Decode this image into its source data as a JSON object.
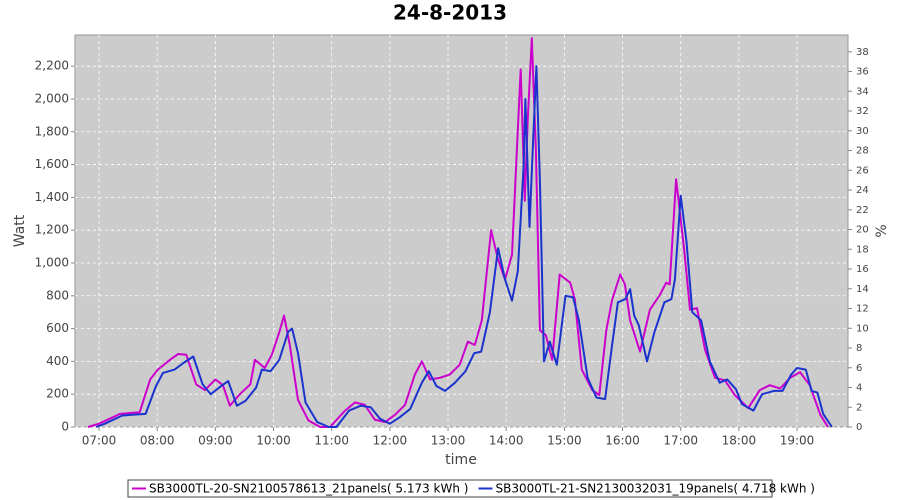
{
  "chart_data": {
    "type": "line",
    "title": "24-8-2013",
    "x_label": "time",
    "y_label": "Watt",
    "y2_label": "%",
    "xlim": [
      6.587,
      19.876
    ],
    "ylim": [
      0,
      2390
    ],
    "y2lim": [
      0,
      39.7
    ],
    "grid": true,
    "legend": "bottom",
    "xticks": [
      {
        "value": 7,
        "label": "07:00"
      },
      {
        "value": 8,
        "label": "08:00"
      },
      {
        "value": 9,
        "label": "09:00"
      },
      {
        "value": 10,
        "label": "10:00"
      },
      {
        "value": 11,
        "label": "11:00"
      },
      {
        "value": 12,
        "label": "12:00"
      },
      {
        "value": 13,
        "label": "13:00"
      },
      {
        "value": 14,
        "label": "14:00"
      },
      {
        "value": 15,
        "label": "15:00"
      },
      {
        "value": 16,
        "label": "16:00"
      },
      {
        "value": 17,
        "label": "17:00"
      },
      {
        "value": 18,
        "label": "18:00"
      },
      {
        "value": 19,
        "label": "19:00"
      }
    ],
    "yticks": [
      0,
      200,
      400,
      600,
      800,
      {
        "value": 1000,
        "label": "1,000"
      },
      {
        "value": 1200,
        "label": "1,200"
      },
      {
        "value": 1400,
        "label": "1,400"
      },
      {
        "value": 1600,
        "label": "1,600"
      },
      {
        "value": 1800,
        "label": "1,800"
      },
      {
        "value": 2000,
        "label": "2,000"
      },
      {
        "value": 2200,
        "label": "2,200"
      }
    ],
    "y2ticks": [
      0,
      2,
      4,
      6,
      8,
      10,
      12,
      14,
      16,
      18,
      20,
      22,
      24,
      26,
      28,
      30,
      32,
      34,
      36,
      38
    ],
    "series": [
      {
        "name": "SB3000TL-20-SN2100578613_21panels( 5.173 kWh )",
        "color": "#cc00cc",
        "x": [
          6.81,
          7.0,
          7.36,
          7.7,
          7.88,
          8.01,
          8.22,
          8.36,
          8.5,
          8.67,
          8.82,
          9.0,
          9.13,
          9.25,
          9.42,
          9.6,
          9.68,
          9.85,
          9.97,
          10.11,
          10.18,
          10.28,
          10.42,
          10.6,
          10.8,
          10.97,
          11.23,
          11.4,
          11.57,
          11.74,
          11.92,
          12.09,
          12.26,
          12.43,
          12.55,
          12.69,
          12.86,
          13.03,
          13.2,
          13.34,
          13.46,
          13.58,
          13.74,
          13.86,
          13.98,
          14.1,
          14.2,
          14.25,
          14.32,
          14.37,
          14.44,
          14.51,
          14.58,
          14.68,
          14.79,
          14.92,
          15.1,
          15.18,
          15.3,
          15.48,
          15.6,
          15.72,
          15.82,
          15.96,
          16.04,
          16.13,
          16.3,
          16.47,
          16.64,
          16.75,
          16.81,
          16.92,
          17.06,
          17.16,
          17.28,
          17.42,
          17.59,
          17.76,
          17.93,
          18.16,
          18.36,
          18.53,
          18.71,
          18.88,
          19.05,
          19.22,
          19.4,
          19.53
        ],
        "values": [
          0,
          20,
          80,
          90,
          290,
          350,
          410,
          445,
          440,
          260,
          225,
          290,
          255,
          130,
          200,
          260,
          410,
          360,
          440,
          590,
          680,
          500,
          165,
          40,
          0,
          0,
          100,
          150,
          135,
          45,
          30,
          75,
          135,
          320,
          400,
          290,
          300,
          320,
          380,
          520,
          500,
          650,
          1200,
          1020,
          900,
          1050,
          1810,
          2180,
          1380,
          1870,
          2370,
          1690,
          590,
          560,
          410,
          930,
          880,
          780,
          350,
          225,
          195,
          590,
          775,
          930,
          870,
          650,
          460,
          715,
          805,
          880,
          870,
          1510,
          1080,
          715,
          725,
          470,
          300,
          285,
          195,
          115,
          225,
          255,
          235,
          300,
          335,
          255,
          75,
          0
        ]
      },
      {
        "name": "SB3000TL-21-SN2130032031_19panels( 4.718 kWh )",
        "color": "#1a33cc",
        "x": [
          6.95,
          7.1,
          7.4,
          7.8,
          7.98,
          8.1,
          8.3,
          8.45,
          8.62,
          8.78,
          8.92,
          9.1,
          9.22,
          9.37,
          9.52,
          9.7,
          9.8,
          9.95,
          10.1,
          10.25,
          10.32,
          10.42,
          10.55,
          10.75,
          10.95,
          11.08,
          11.3,
          11.5,
          11.67,
          11.83,
          12.0,
          12.17,
          12.35,
          12.55,
          12.67,
          12.8,
          12.95,
          13.12,
          13.3,
          13.45,
          13.57,
          13.72,
          13.86,
          13.98,
          14.1,
          14.2,
          14.3,
          14.33,
          14.4,
          14.47,
          14.52,
          14.58,
          14.65,
          14.75,
          14.87,
          15.02,
          15.15,
          15.25,
          15.4,
          15.55,
          15.7,
          15.82,
          15.92,
          16.05,
          16.13,
          16.2,
          16.28,
          16.42,
          16.55,
          16.72,
          16.84,
          16.9,
          17.0,
          17.1,
          17.2,
          17.35,
          17.5,
          17.67,
          17.8,
          17.95,
          18.05,
          18.25,
          18.4,
          18.6,
          18.75,
          18.9,
          19.0,
          19.15,
          19.25,
          19.35,
          19.45,
          19.6
        ],
        "values": [
          0,
          20,
          70,
          80,
          250,
          330,
          350,
          390,
          430,
          260,
          200,
          250,
          280,
          130,
          160,
          240,
          350,
          340,
          410,
          580,
          600,
          450,
          150,
          30,
          0,
          0,
          100,
          130,
          120,
          50,
          20,
          60,
          110,
          270,
          340,
          250,
          220,
          270,
          340,
          450,
          460,
          700,
          1090,
          900,
          770,
          950,
          1600,
          2000,
          1220,
          1800,
          2200,
          1500,
          400,
          520,
          380,
          800,
          790,
          650,
          300,
          180,
          170,
          500,
          760,
          780,
          840,
          680,
          620,
          400,
          580,
          760,
          780,
          900,
          1410,
          1130,
          700,
          650,
          400,
          270,
          290,
          230,
          140,
          100,
          200,
          220,
          220,
          320,
          360,
          350,
          220,
          210,
          80,
          0
        ]
      }
    ]
  }
}
